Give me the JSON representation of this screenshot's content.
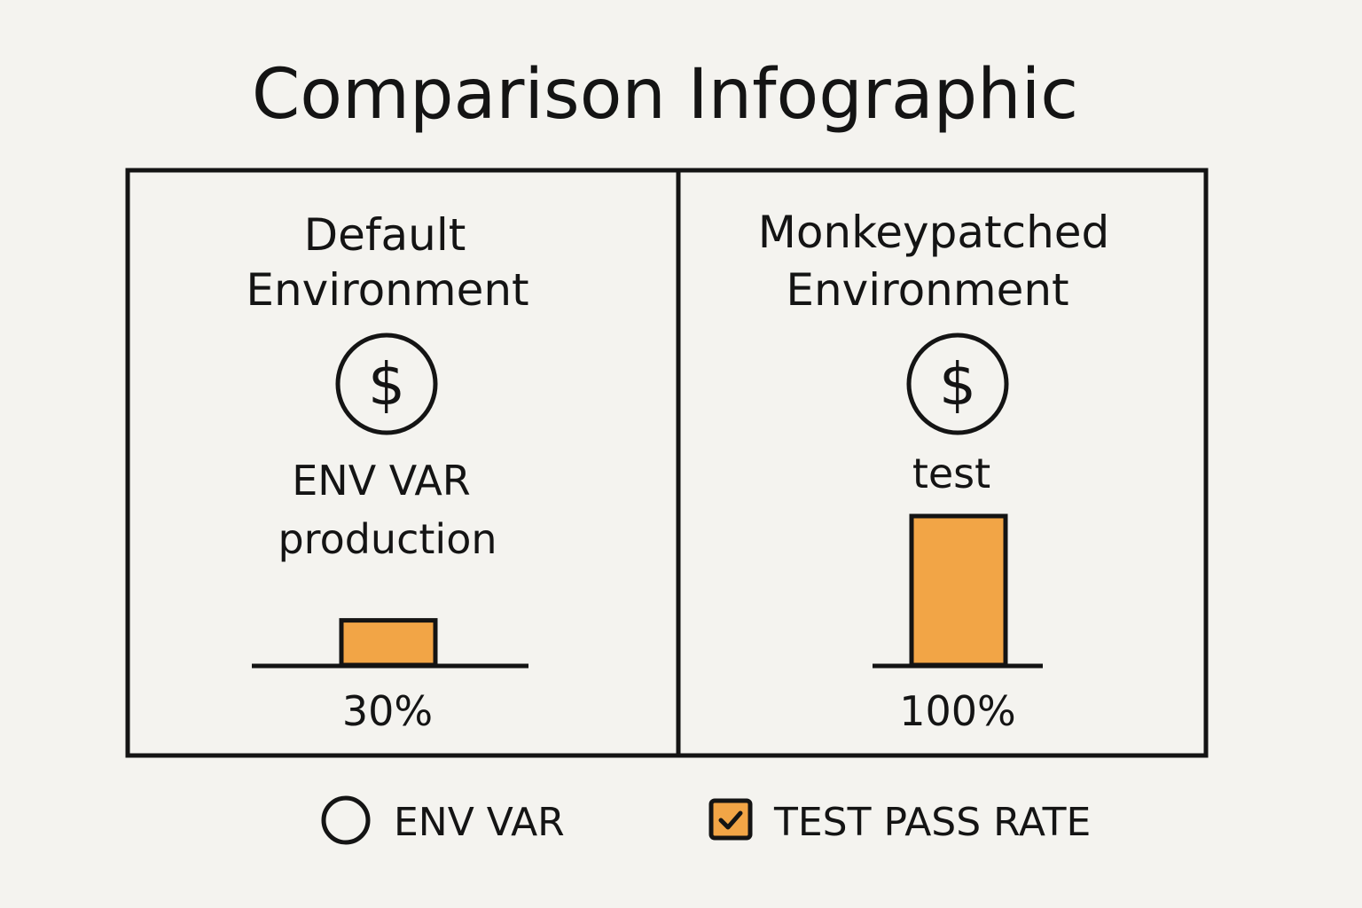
{
  "title": "Comparison Infographic",
  "colors": {
    "background": "#f4f3ef",
    "ink": "#141414",
    "bar_fill": "#f2a546"
  },
  "chart_data": {
    "type": "bar",
    "title": "Comparison Infographic",
    "ylim": [
      0,
      100
    ],
    "unit": "%",
    "panels": [
      {
        "heading_line1": "Default",
        "heading_line2": "Environment",
        "icon": "dollar-icon",
        "env_var_label_line1": "ENV VAR",
        "env_var_label_line2": "production",
        "value": 30,
        "value_label": "30%"
      },
      {
        "heading_line1": "Monkeypatched",
        "heading_line2": "Environment",
        "icon": "dollar-icon",
        "env_var_label_line1": "test",
        "env_var_label_line2": "",
        "value": 100,
        "value_label": "100%"
      }
    ],
    "legend": [
      {
        "label": "ENV VAR",
        "icon": "circle-icon"
      },
      {
        "label": "TEST PASS RATE",
        "icon": "checkbox-icon"
      }
    ]
  }
}
